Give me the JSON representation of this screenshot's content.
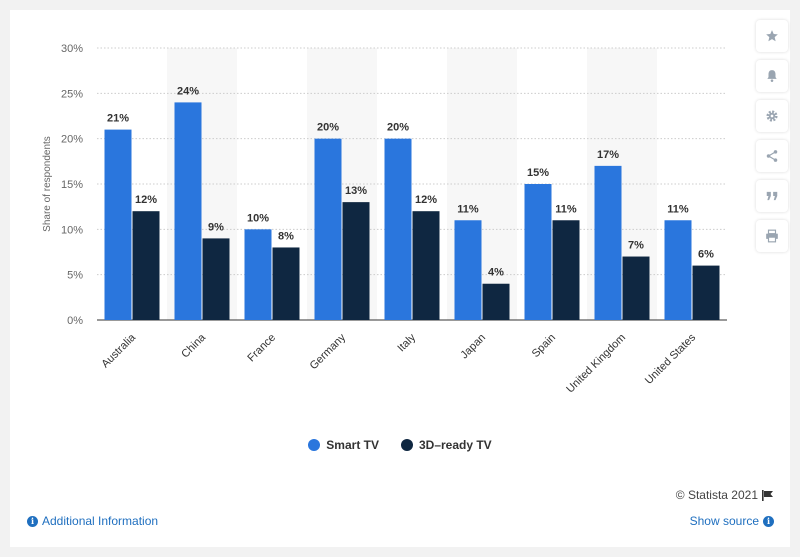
{
  "chart_data": {
    "type": "bar",
    "categories": [
      "Australia",
      "China",
      "France",
      "Germany",
      "Italy",
      "Japan",
      "Spain",
      "United Kingdom",
      "United States"
    ],
    "series": [
      {
        "name": "Smart TV",
        "values": [
          21,
          24,
          10,
          20,
          20,
          11,
          15,
          17,
          11
        ],
        "color": "#2a76dd"
      },
      {
        "name": "3D–ready TV",
        "values": [
          12,
          9,
          8,
          13,
          12,
          4,
          11,
          7,
          6
        ],
        "color": "#0f2741"
      }
    ],
    "value_suffix": "%",
    "ylabel": "Share of respondents",
    "ylim": [
      0,
      30
    ],
    "yticks": [
      0,
      5,
      10,
      15,
      20,
      25,
      30
    ],
    "grid": true,
    "legend_position": "bottom"
  },
  "legend": {
    "smart": "Smart TV",
    "ready3d": "3D–ready TV",
    "smart_color": "#2a76dd",
    "ready3d_color": "#0f2741"
  },
  "sidebar": {
    "icons": [
      "star-icon",
      "bell-icon",
      "gear-icon",
      "share-icon",
      "quote-icon",
      "print-icon"
    ]
  },
  "footer": {
    "credit": "© Statista 2021",
    "additional_info": "Additional Information",
    "show_source": "Show source"
  }
}
